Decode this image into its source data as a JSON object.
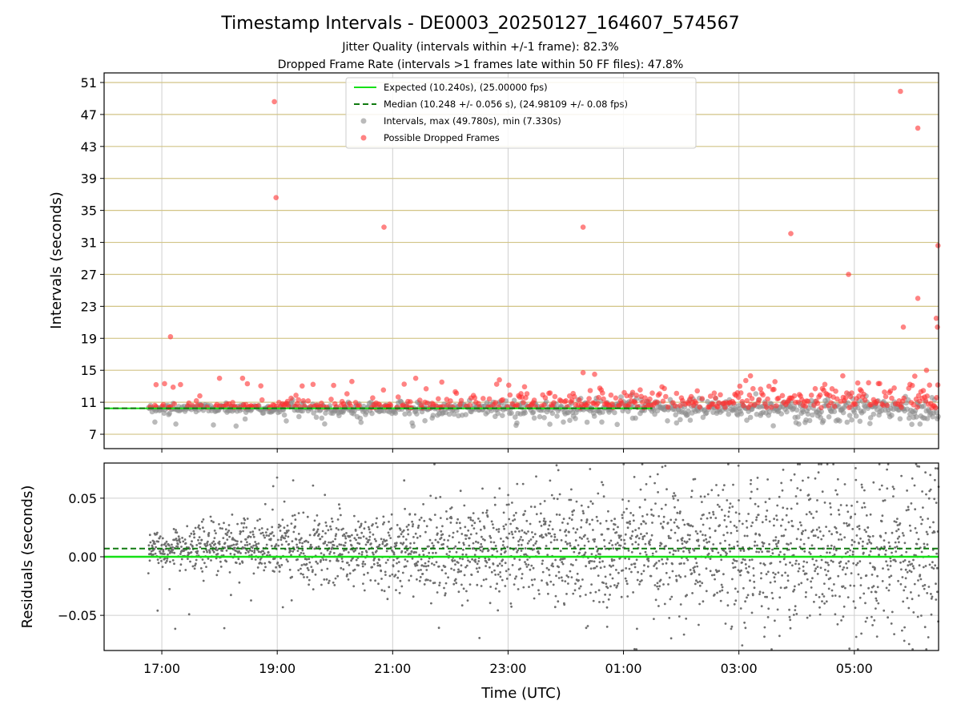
{
  "chart_data": {
    "type": "scatter",
    "title": "Timestamp Intervals - DE0003_20250127_164607_574567",
    "subtitles": [
      "Jitter Quality (intervals within +/-1 frame): 82.3%",
      "Dropped Frame Rate (intervals >1 frames late within 50 FF files): 47.8%"
    ],
    "xlabel": "Time (UTC)",
    "x_ticks": [
      "17:00",
      "19:00",
      "21:00",
      "23:00",
      "01:00",
      "03:00",
      "05:00"
    ],
    "x_tick_hours": [
      17,
      19,
      21,
      23,
      25,
      27,
      29
    ],
    "x_range_hours": [
      16.0,
      30.46
    ],
    "data_start_hour": 16.77,
    "top_panel": {
      "ylabel": "Intervals (seconds)",
      "ylim": [
        5.2,
        52.2
      ],
      "y_ticks": [
        7,
        11,
        15,
        19,
        23,
        27,
        31,
        35,
        39,
        43,
        47,
        51
      ],
      "grid": true,
      "legend_placement": "top-center",
      "legend": [
        {
          "label": "Expected (10.240s), (25.00000 fps)",
          "style": "solid-line",
          "color": "#16e016"
        },
        {
          "label": "Median (10.248 +/- 0.056 s), (24.98109 +/- 0.08 fps)",
          "style": "dashed-line",
          "color": "#107a10"
        },
        {
          "label": "Intervals, max (49.780s), min (7.330s)",
          "style": "marker",
          "color": "#8c8c8c"
        },
        {
          "label": "Possible Dropped Frames",
          "style": "marker",
          "color": "#ff3030"
        }
      ],
      "expected_line": 10.24,
      "median_line": 10.248,
      "dropped_frame_outliers": [
        {
          "x": 17.15,
          "y": 19.2
        },
        {
          "x": 16.9,
          "y": 13.2
        },
        {
          "x": 18.0,
          "y": 14.0
        },
        {
          "x": 18.4,
          "y": 14.0
        },
        {
          "x": 18.95,
          "y": 48.6
        },
        {
          "x": 18.98,
          "y": 36.6
        },
        {
          "x": 20.85,
          "y": 32.9
        },
        {
          "x": 21.4,
          "y": 14.0
        },
        {
          "x": 22.85,
          "y": 13.8
        },
        {
          "x": 24.3,
          "y": 32.9
        },
        {
          "x": 24.3,
          "y": 14.7
        },
        {
          "x": 24.5,
          "y": 14.5
        },
        {
          "x": 27.2,
          "y": 14.3
        },
        {
          "x": 27.9,
          "y": 32.1
        },
        {
          "x": 28.8,
          "y": 14.3
        },
        {
          "x": 28.9,
          "y": 27.0
        },
        {
          "x": 29.8,
          "y": 49.9
        },
        {
          "x": 29.85,
          "y": 20.4
        },
        {
          "x": 30.1,
          "y": 45.3
        },
        {
          "x": 30.1,
          "y": 24.0
        },
        {
          "x": 30.25,
          "y": 15.0
        },
        {
          "x": 30.42,
          "y": 21.5
        },
        {
          "x": 30.44,
          "y": 20.4
        },
        {
          "x": 30.45,
          "y": 30.6
        }
      ]
    },
    "bottom_panel": {
      "ylabel": "Residuals (seconds)",
      "ylim": [
        -0.08,
        0.08
      ],
      "y_ticks": [
        0.05,
        0.0,
        -0.05
      ],
      "y_tick_labels": [
        "0.05",
        "0.00",
        "−0.05"
      ],
      "grid": true,
      "expected_line": 0.0,
      "median_line": 0.007,
      "point_color": "#6e6e6e"
    }
  }
}
